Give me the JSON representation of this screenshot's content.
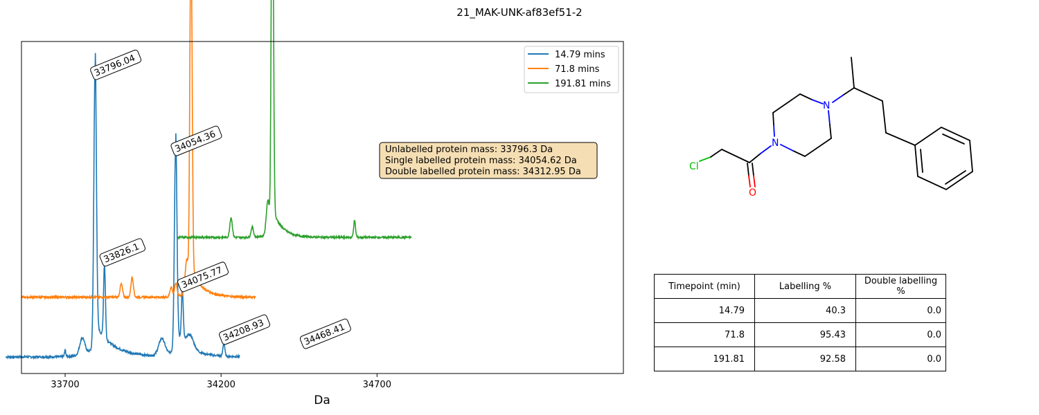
{
  "figure_title": "21_MAK-UNK-af83ef51-2",
  "chart_data": {
    "type": "line",
    "title": "",
    "xlabel": "Da",
    "ylabel": "",
    "xlim": [
      33560,
      35490
    ],
    "x_ticks": [
      33700,
      34200,
      34700
    ],
    "x_tick_labels": [
      "33700",
      "34200",
      "34700"
    ],
    "y_ticks_visible": false,
    "grid": false,
    "legend_position": "top-right",
    "series": [
      {
        "name": "14.79 mins",
        "color": "#1f77b4",
        "baseline_fraction": 0.05,
        "x_range": [
          33510,
          34260
        ],
        "peaks": [
          {
            "x": 33796.04,
            "height": 0.84,
            "width": 4,
            "tail": 55
          },
          {
            "x": 33826.1,
            "height": 0.22,
            "width": 3
          },
          {
            "x": 34054.36,
            "height": 0.61,
            "width": 4,
            "tail": 45
          },
          {
            "x": 34075.77,
            "height": 0.15,
            "width": 3
          },
          {
            "x": 34208.93,
            "height": 0.04,
            "width": 3
          },
          {
            "x": 34468.41,
            "height": 0.03,
            "width": 3
          },
          {
            "x": 33700,
            "height": 0.02,
            "width": 2
          },
          {
            "x": 33755,
            "height": 0.05,
            "width": 8
          },
          {
            "x": 34010,
            "height": 0.05,
            "width": 10
          },
          {
            "x": 34100,
            "height": 0.04,
            "width": 12
          }
        ]
      },
      {
        "name": "71.8 mins",
        "color": "#ff7f0e",
        "baseline_fraction": 0.23,
        "x_range": [
          33560,
          34310
        ],
        "peaks": [
          {
            "x": 34102,
            "height": 0.76,
            "width": 3,
            "tail": 35
          },
          {
            "x": 34106,
            "height": 0.5,
            "width": 3
          },
          {
            "x": 34090,
            "height": 0.1,
            "width": 5
          },
          {
            "x": 33880,
            "height": 0.04,
            "width": 4
          },
          {
            "x": 33915,
            "height": 0.06,
            "width": 4
          },
          {
            "x": 34040,
            "height": 0.03,
            "width": 4
          },
          {
            "x": 34055,
            "height": 0.04,
            "width": 4
          },
          {
            "x": 34512,
            "height": 0.04,
            "width": 4
          }
        ]
      },
      {
        "name": "191.81 mins",
        "color": "#2ca02c",
        "baseline_fraction": 0.41,
        "x_range": [
          34060,
          34810
        ],
        "peaks": [
          {
            "x": 34363,
            "height": 0.76,
            "width": 3,
            "tail": 30
          },
          {
            "x": 34366,
            "height": 0.6,
            "width": 3
          },
          {
            "x": 34350,
            "height": 0.1,
            "width": 5
          },
          {
            "x": 34232,
            "height": 0.06,
            "width": 4
          },
          {
            "x": 34300,
            "height": 0.03,
            "width": 4
          },
          {
            "x": 34628,
            "height": 0.05,
            "width": 3
          }
        ]
      }
    ],
    "annotations": [
      {
        "text": "33796.04",
        "x": 33796.04,
        "series": 0
      },
      {
        "text": "33826.1",
        "x": 33826.1,
        "series": 0
      },
      {
        "text": "34054.36",
        "x": 34054.36,
        "series": 0
      },
      {
        "text": "34075.77",
        "x": 34075.77,
        "series": 0
      },
      {
        "text": "34208.93",
        "x": 34208.93,
        "series": 0
      },
      {
        "text": "34468.41",
        "x": 34468.41,
        "series": 0
      }
    ],
    "info_box": [
      "Unlabelled protein mass: 33796.3 Da",
      "Single labelled protein mass: 34054.62 Da",
      "Double labelled protein mass: 34312.95 Da"
    ]
  },
  "structure": {
    "atoms": {
      "n1": "N",
      "n2": "N",
      "o": "O",
      "cl": "Cl"
    }
  },
  "table": {
    "headers": [
      "Timepoint (min)",
      "Labelling %",
      "Double labelling %"
    ],
    "rows": [
      [
        "14.79",
        "40.3",
        "0.0"
      ],
      [
        "71.8",
        "95.43",
        "0.0"
      ],
      [
        "191.81",
        "92.58",
        "0.0"
      ]
    ]
  },
  "colors": {
    "box_fill": "#f5deb3",
    "atom_N": "#0000ff",
    "atom_O": "#ff0000",
    "atom_Cl": "#00bf00"
  }
}
